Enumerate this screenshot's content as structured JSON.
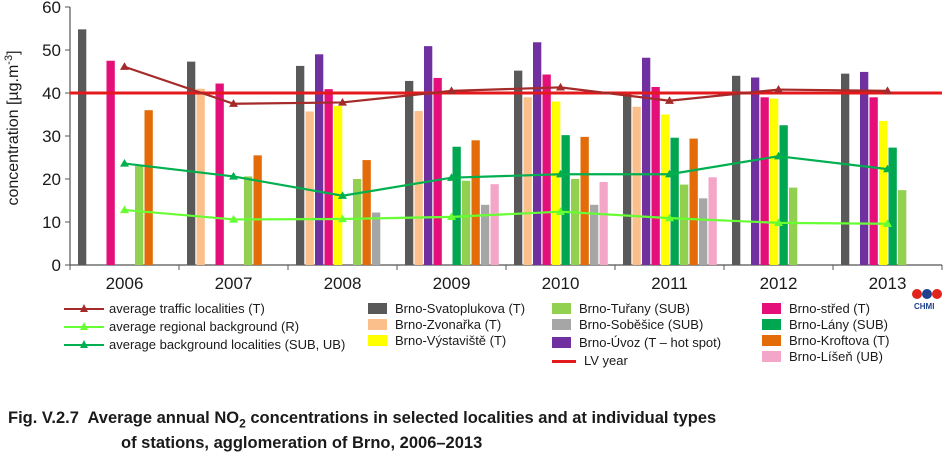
{
  "caption": {
    "prefix": "Fig. V.2.7",
    "line1_before": "Average annual NO",
    "line1_sub": "2",
    "line1_after": " concentrations in selected localities and at individual types",
    "line2": "of stations, agglomeration of Brno, 2006–2013"
  },
  "logo": {
    "text": "CHMI",
    "colors": [
      "#e2231a",
      "#1f3f8f",
      "#e2231a"
    ]
  },
  "chart_data": {
    "type": "bar",
    "categories": [
      "2006",
      "2007",
      "2008",
      "2009",
      "2010",
      "2011",
      "2012",
      "2013"
    ],
    "ylabel": "concentration [µg.m-3]",
    "ylabel_parts": {
      "base": "concentration [µg.m",
      "sup": "-3",
      "end": "]"
    },
    "ylim": [
      0,
      60
    ],
    "yticks": [
      "0",
      "10",
      "20",
      "30",
      "40",
      "50",
      "60"
    ],
    "grid": false,
    "limit_value": 40,
    "series": [
      {
        "name": "Brno-Svatoplukova (T)",
        "color": "#595959",
        "values": [
          54.8,
          47.3,
          46.3,
          42.8,
          45.2,
          40.0,
          44.0,
          44.5
        ]
      },
      {
        "name": "Brno-Zvonařka (T)",
        "color": "#fbbf8c",
        "values": [
          null,
          41.0,
          35.7,
          35.8,
          39.0,
          36.8,
          null,
          null
        ]
      },
      {
        "name": "Brno-Úvoz (T – hot spot)",
        "color": "#7030a0",
        "values": [
          null,
          null,
          49.0,
          50.9,
          51.8,
          48.2,
          43.6,
          44.9
        ]
      },
      {
        "name": "Brno-střed (T)",
        "color": "#e40f78",
        "values": [
          47.5,
          42.2,
          40.9,
          43.5,
          44.3,
          41.4,
          39.0,
          39.0
        ]
      },
      {
        "name": "Brno-Výstaviště (T)",
        "color": "#ffff00",
        "values": [
          null,
          null,
          37.0,
          null,
          38.0,
          35.0,
          38.7,
          33.5
        ]
      },
      {
        "name": "Brno-Lány (SUB)",
        "color": "#00a650",
        "values": [
          null,
          null,
          null,
          27.5,
          30.2,
          29.6,
          32.5,
          27.3
        ]
      },
      {
        "name": "Brno-Tuřany (SUB)",
        "color": "#92d050",
        "values": [
          23.0,
          20.6,
          20.0,
          19.6,
          20.0,
          18.7,
          18.0,
          17.4
        ]
      },
      {
        "name": "Brno-Kroftova (T)",
        "color": "#e36c09",
        "values": [
          36.0,
          25.5,
          24.4,
          29.0,
          29.8,
          29.4,
          null,
          null
        ]
      },
      {
        "name": "Brno-Soběšice (SUB)",
        "color": "#a6a6a6",
        "values": [
          null,
          null,
          12.2,
          14.0,
          14.0,
          15.5,
          null,
          null
        ]
      },
      {
        "name": "Brno-Líšeň (UB)",
        "color": "#f4a6c8",
        "values": [
          null,
          null,
          null,
          18.8,
          19.3,
          20.4,
          null,
          null
        ]
      }
    ],
    "lines": [
      {
        "name": "average traffic localities (T)",
        "color": "#a52a2a",
        "values": [
          46.1,
          37.5,
          37.8,
          40.5,
          41.3,
          38.2,
          40.8,
          40.5
        ]
      },
      {
        "name": "average regional background (R)",
        "color": "#66ff33",
        "values": [
          12.8,
          10.6,
          10.7,
          11.2,
          12.4,
          10.9,
          9.8,
          9.6
        ]
      },
      {
        "name": "average background localities (SUB, UB)",
        "color": "#00b050",
        "values": [
          23.6,
          20.6,
          16.1,
          20.3,
          21.1,
          21.1,
          25.3,
          22.3
        ]
      }
    ],
    "limit_line": {
      "name": "LV year",
      "color": "#e3191c"
    }
  }
}
